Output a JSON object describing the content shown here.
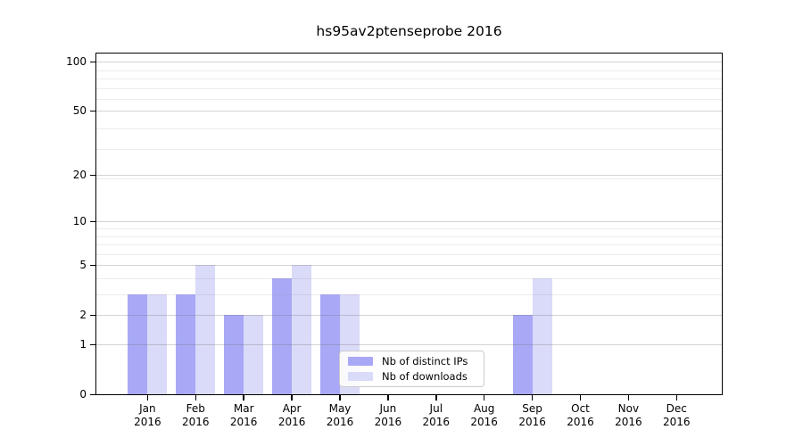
{
  "title": "hs95av2ptenseprobe 2016",
  "chart_data": {
    "type": "bar",
    "title": "hs95av2ptenseprobe 2016",
    "categories": [
      "Jan 2016",
      "Feb 2016",
      "Mar 2016",
      "Apr 2016",
      "May 2016",
      "Jun 2016",
      "Jul 2016",
      "Aug 2016",
      "Sep 2016",
      "Oct 2016",
      "Nov 2016",
      "Dec 2016"
    ],
    "series": [
      {
        "name": "Nb of distinct IPs",
        "color": "#a8a8f7",
        "values": [
          3,
          3,
          2,
          4,
          3,
          0,
          0,
          0,
          2,
          0,
          0,
          0
        ]
      },
      {
        "name": "Nb of downloads",
        "color": "#dadaf9",
        "values": [
          3,
          5,
          2,
          5,
          3,
          0,
          0,
          0,
          4,
          0,
          0,
          0
        ]
      }
    ],
    "xlabel": "",
    "ylabel": "",
    "y_scale": "log10(1+x)",
    "y_tick_values": [
      0,
      1,
      2,
      5,
      10,
      20,
      50,
      100
    ],
    "y_tick_labels": [
      "0",
      "1",
      "2",
      "5",
      "10",
      "20",
      "50",
      "100"
    ],
    "y_minor_gridline_values": [
      3,
      4,
      6,
      7,
      8,
      9,
      19,
      29,
      39,
      59,
      69,
      79,
      89
    ],
    "ylim": [
      0,
      115
    ],
    "grid": true,
    "grid_over_bars": true,
    "legend_position": "lower center"
  },
  "colors": {
    "background": "#ffffff",
    "axis": "#000000",
    "bar_distinct_ips": "#a8a8f7",
    "bar_downloads": "#dadaf9",
    "grid_major": "#d5d5d5",
    "grid_minor": "#ececec"
  }
}
